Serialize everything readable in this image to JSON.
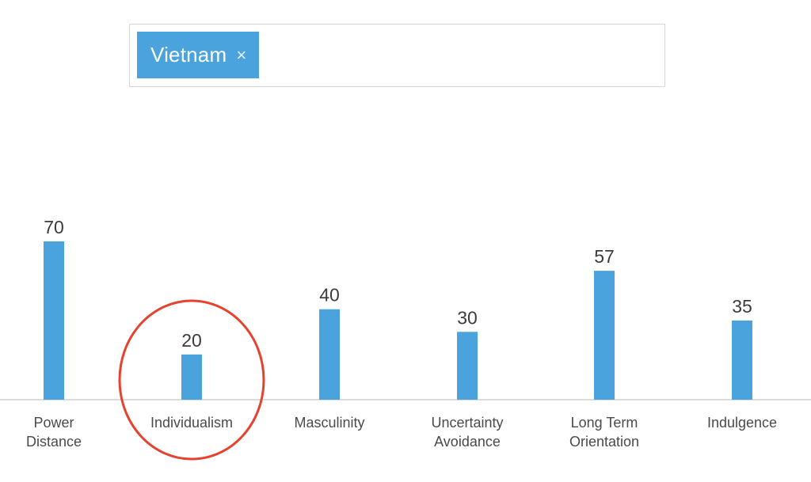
{
  "filter": {
    "selected_tag": "Vietnam",
    "remove_glyph": "×"
  },
  "colors": {
    "bar": "#4aa3dc",
    "tag_bg": "#4aa3dc",
    "highlight_circle": "#e5432f",
    "axis": "#cfcfcf"
  },
  "chart_data": {
    "type": "bar",
    "categories": [
      [
        "Power",
        "Distance"
      ],
      [
        "Individualism"
      ],
      [
        "Masculinity"
      ],
      [
        "Uncertainty",
        "Avoidance"
      ],
      [
        "Long Term",
        "Orientation"
      ],
      [
        "Indulgence"
      ]
    ],
    "series": [
      {
        "values": [
          70,
          20,
          40,
          30,
          57,
          35
        ]
      }
    ],
    "title": "",
    "xlabel": "",
    "ylabel": "",
    "ylim": [
      0,
      100
    ],
    "grid": false,
    "legend": "none",
    "highlighted_category": "Individualism"
  }
}
